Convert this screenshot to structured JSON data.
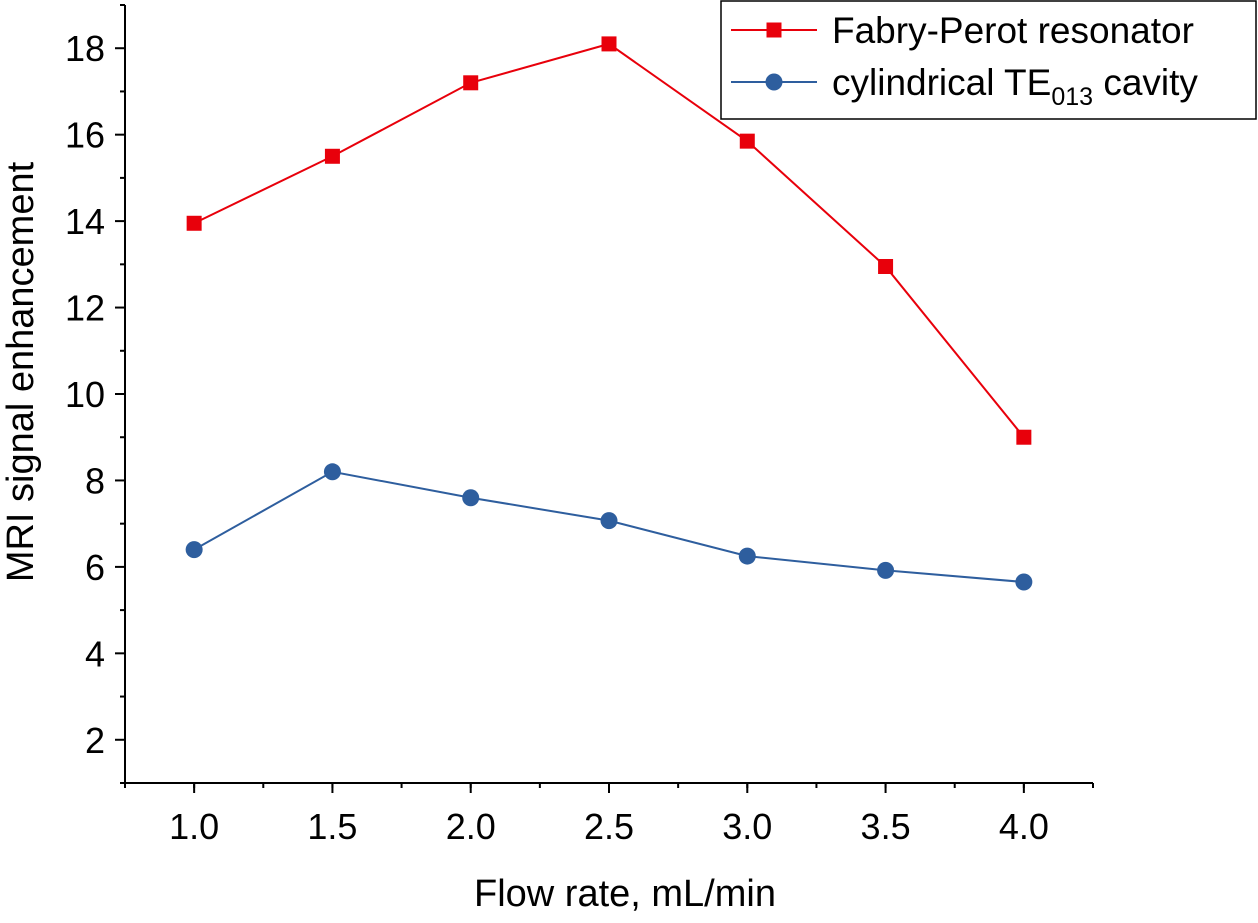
{
  "chart_data": {
    "type": "line",
    "title": "",
    "xlabel": "Flow rate, mL/min",
    "ylabel": "MRI signal enhancement",
    "xlim": [
      0.75,
      4.25
    ],
    "ylim": [
      1.0,
      19.0
    ],
    "x_ticks": [
      1.0,
      1.5,
      2.0,
      2.5,
      3.0,
      3.5,
      4.0
    ],
    "x_tick_labels": [
      "1.0",
      "1.5",
      "2.0",
      "2.5",
      "3.0",
      "3.5",
      "4.0"
    ],
    "y_ticks": [
      2,
      4,
      6,
      8,
      10,
      12,
      14,
      16,
      18
    ],
    "y_tick_labels": [
      "2",
      "4",
      "6",
      "8",
      "10",
      "12",
      "14",
      "16",
      "18"
    ],
    "x": [
      1.0,
      1.5,
      2.0,
      2.5,
      3.0,
      3.5,
      4.0
    ],
    "series": [
      {
        "name": "Fabry-Perot resonator",
        "legend_main": "Fabry-Perot resonator",
        "legend_sub": "",
        "legend_tail": "",
        "marker": "square",
        "color": "#e8000b",
        "values": [
          13.95,
          15.5,
          17.2,
          18.1,
          15.85,
          12.95,
          9.0
        ]
      },
      {
        "name": "cylindrical TE013 cavity",
        "legend_main": "cylindrical TE",
        "legend_sub": "013",
        "legend_tail": " cavity",
        "marker": "circle",
        "color": "#2e5e9e",
        "values": [
          6.4,
          8.2,
          7.6,
          7.07,
          6.25,
          5.92,
          5.65
        ]
      }
    ],
    "legend_position": "top-right"
  }
}
